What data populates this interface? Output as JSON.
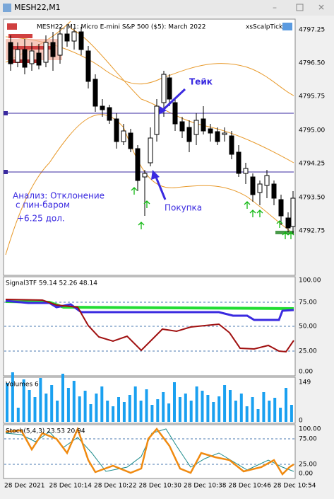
{
  "window": {
    "title": "MESH22,M1"
  },
  "chart": {
    "header": "MESH22, M1:  Micro E-mini S&P 500 ($5): March 2022",
    "expert": "xsScalpTick",
    "price_labels": [
      "4797.25",
      "4796.50",
      "4795.75",
      "4795.00",
      "4794.25",
      "4793.50",
      "4792.75"
    ],
    "annotations": {
      "take": "Тейк",
      "buy": "Покупка",
      "analysis": [
        "Анализ: Отклонение",
        "с пин-баром",
        "+6.25 дол."
      ]
    }
  },
  "signal_pane": {
    "label": "Signal3TF 59.14 52.26 48.14",
    "levels": [
      "100.00",
      "75.00",
      "50.00",
      "25.00",
      "0.00"
    ]
  },
  "volume_pane": {
    "label": "Volumes 6",
    "levels": [
      "149",
      "0"
    ]
  },
  "stoch_pane": {
    "label": "Stoch(5,4,3) 23.53 20.94",
    "levels": [
      "100.00",
      "75.00",
      "25.00",
      "0.00"
    ]
  },
  "time_labels": [
    "28 Dec 2021",
    "28 Dec 10:14",
    "28 Dec 10:22",
    "28 Dec 10:30",
    "28 Dec 10:38",
    "28 Dec 10:46",
    "28 Dec 10:54"
  ]
}
